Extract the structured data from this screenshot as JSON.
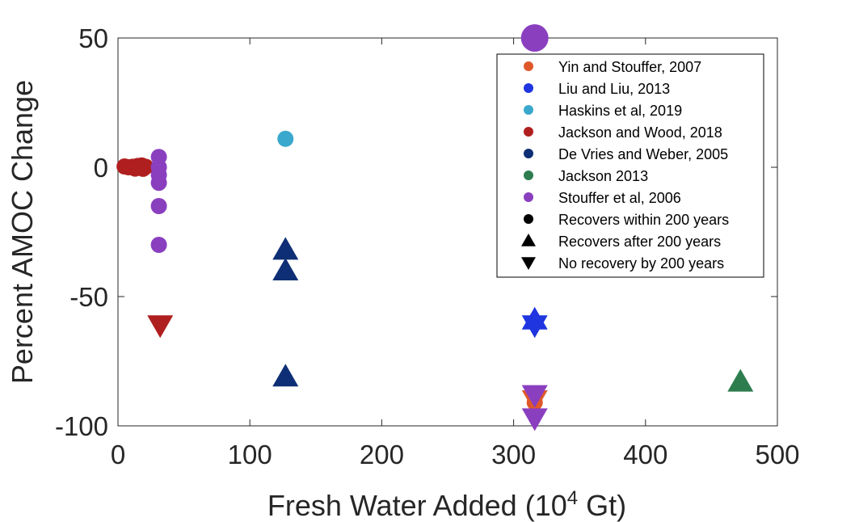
{
  "chart_data": {
    "type": "scatter",
    "title": "",
    "xlabel": "Fresh Water Added (10",
    "xlabel_superscript": "4",
    "xlabel_suffix": " Gt)",
    "ylabel": "Percent AMOC Change",
    "xlim": [
      0,
      500
    ],
    "ylim": [
      -100,
      50
    ],
    "xticks": [
      0,
      100,
      200,
      300,
      400,
      500
    ],
    "yticks": [
      -100,
      -50,
      0,
      50
    ],
    "xtick_labels": [
      "0",
      "100",
      "200",
      "300",
      "400",
      "500"
    ],
    "ytick_labels": [
      "-100",
      "-50",
      "0",
      "50"
    ],
    "grid": false,
    "legend_position": "top-right",
    "series": [
      {
        "name": "Yin and Stouffer, 2007",
        "color": "#e0582a",
        "points": [
          {
            "x": 316,
            "y": -91,
            "marker": "circle"
          },
          {
            "x": 316,
            "y": -90,
            "marker": "triangle-down"
          }
        ]
      },
      {
        "name": "Liu and Liu, 2013",
        "color": "#1f35e0",
        "points": [
          {
            "x": 316,
            "y": -59,
            "marker": "triangle-up"
          },
          {
            "x": 316,
            "y": -61,
            "marker": "triangle-down"
          }
        ]
      },
      {
        "name": "Haskins et al, 2019",
        "color": "#3aa8cc",
        "points": [
          {
            "x": 127,
            "y": 11,
            "marker": "circle"
          }
        ]
      },
      {
        "name": "Jackson and Wood, 2018",
        "color": "#b01f1f",
        "points": [
          {
            "x": 5,
            "y": 0.3,
            "marker": "circle"
          },
          {
            "x": 8,
            "y": 0,
            "marker": "circle"
          },
          {
            "x": 11,
            "y": 0.2,
            "marker": "circle"
          },
          {
            "x": 13,
            "y": -0.5,
            "marker": "circle"
          },
          {
            "x": 15,
            "y": 0.5,
            "marker": "circle"
          },
          {
            "x": 17,
            "y": 0,
            "marker": "circle"
          },
          {
            "x": 18,
            "y": 0.7,
            "marker": "circle"
          },
          {
            "x": 19,
            "y": -0.6,
            "marker": "circle"
          },
          {
            "x": 21,
            "y": 0.2,
            "marker": "circle"
          },
          {
            "x": 32,
            "y": -61,
            "marker": "triangle-down"
          }
        ]
      },
      {
        "name": "De Vries and Weber, 2005",
        "color": "#0e2f75",
        "points": [
          {
            "x": 127,
            "y": -32,
            "marker": "triangle-up"
          },
          {
            "x": 127,
            "y": -40,
            "marker": "triangle-up"
          },
          {
            "x": 127,
            "y": -81,
            "marker": "triangle-up"
          }
        ]
      },
      {
        "name": "Jackson 2013",
        "color": "#2e7d4f",
        "points": [
          {
            "x": 472,
            "y": -83,
            "marker": "triangle-up"
          }
        ]
      },
      {
        "name": "Stouffer et al, 2006",
        "color": "#8a3fbf",
        "points": [
          {
            "x": 31,
            "y": 4,
            "marker": "circle"
          },
          {
            "x": 31,
            "y": 0,
            "marker": "circle"
          },
          {
            "x": 31,
            "y": -3,
            "marker": "circle"
          },
          {
            "x": 31,
            "y": -6,
            "marker": "circle"
          },
          {
            "x": 31,
            "y": -15,
            "marker": "circle"
          },
          {
            "x": 31,
            "y": -30,
            "marker": "circle"
          },
          {
            "x": 316,
            "y": 50,
            "marker": "circle-large"
          },
          {
            "x": 316,
            "y": -88,
            "marker": "triangle-down"
          },
          {
            "x": 316,
            "y": -97,
            "marker": "triangle-down"
          }
        ]
      }
    ],
    "legend_entries": [
      {
        "label": "Yin and Stouffer, 2007",
        "color": "#e0582a",
        "marker": "circle"
      },
      {
        "label": "Liu and Liu, 2013",
        "color": "#1f35e0",
        "marker": "circle"
      },
      {
        "label": "Haskins et al, 2019",
        "color": "#3aa8cc",
        "marker": "circle"
      },
      {
        "label": "Jackson and Wood, 2018",
        "color": "#b01f1f",
        "marker": "circle"
      },
      {
        "label": "De Vries and Weber, 2005",
        "color": "#0e2f75",
        "marker": "circle"
      },
      {
        "label": "Jackson 2013",
        "color": "#2e7d4f",
        "marker": "circle"
      },
      {
        "label": "Stouffer et al, 2006",
        "color": "#8a3fbf",
        "marker": "circle"
      },
      {
        "label": "Recovers within 200 years",
        "color": "#000000",
        "marker": "circle"
      },
      {
        "label": "Recovers after 200 years",
        "color": "#000000",
        "marker": "triangle-up"
      },
      {
        "label": "No recovery by 200 years",
        "color": "#000000",
        "marker": "triangle-down"
      }
    ]
  }
}
